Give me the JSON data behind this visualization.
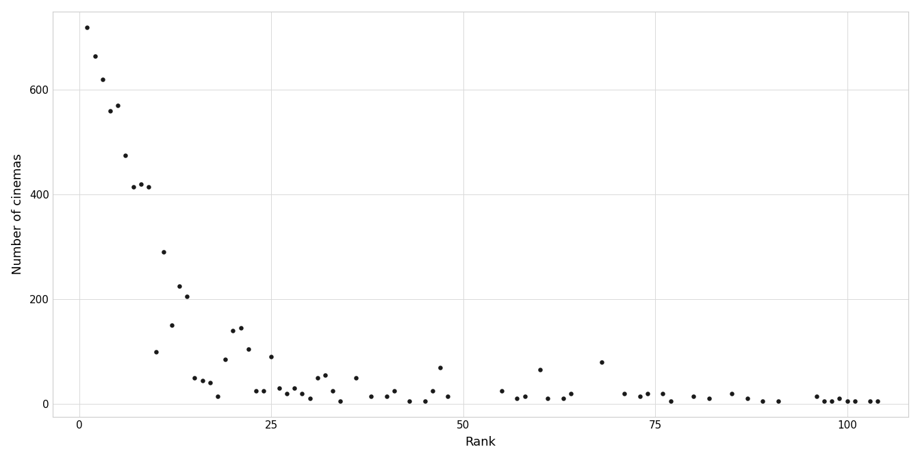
{
  "x": [
    1,
    2,
    3,
    4,
    5,
    6,
    7,
    8,
    9,
    10,
    11,
    12,
    13,
    14,
    15,
    16,
    17,
    18,
    19,
    20,
    21,
    22,
    23,
    24,
    25,
    26,
    27,
    28,
    29,
    30,
    31,
    32,
    33,
    34,
    36,
    38,
    40,
    41,
    43,
    45,
    46,
    47,
    48,
    55,
    57,
    58,
    60,
    61,
    63,
    64,
    68,
    71,
    73,
    74,
    76,
    77,
    80,
    82,
    85,
    87,
    89,
    91,
    96,
    97,
    98,
    99,
    100,
    101,
    103,
    104
  ],
  "y": [
    720,
    665,
    620,
    560,
    570,
    475,
    415,
    420,
    415,
    100,
    290,
    150,
    225,
    205,
    50,
    45,
    40,
    15,
    85,
    140,
    145,
    105,
    25,
    25,
    90,
    30,
    20,
    30,
    20,
    10,
    50,
    55,
    25,
    5,
    50,
    15,
    15,
    25,
    5,
    5,
    25,
    70,
    15,
    25,
    10,
    15,
    65,
    10,
    10,
    20,
    80,
    20,
    15,
    20,
    20,
    5,
    15,
    10,
    20,
    10,
    5,
    5,
    15,
    5,
    5,
    10,
    5,
    5,
    5,
    5
  ],
  "xlabel": "Rank",
  "ylabel": "Number of cinemas",
  "xlim": [
    -3.5,
    108
  ],
  "ylim": [
    -25,
    750
  ],
  "xticks": [
    0,
    25,
    50,
    75,
    100
  ],
  "yticks": [
    0,
    200,
    400,
    600
  ],
  "marker_color": "#1a1a1a",
  "marker_size": 22,
  "background_color": "#ffffff",
  "grid_color": "#d9d9d9",
  "grid_linewidth": 0.7,
  "label_fontsize": 13,
  "tick_fontsize": 11,
  "spine_color": "#cccccc",
  "fig_width": 13.44,
  "fig_height": 6.72,
  "dpi": 100
}
